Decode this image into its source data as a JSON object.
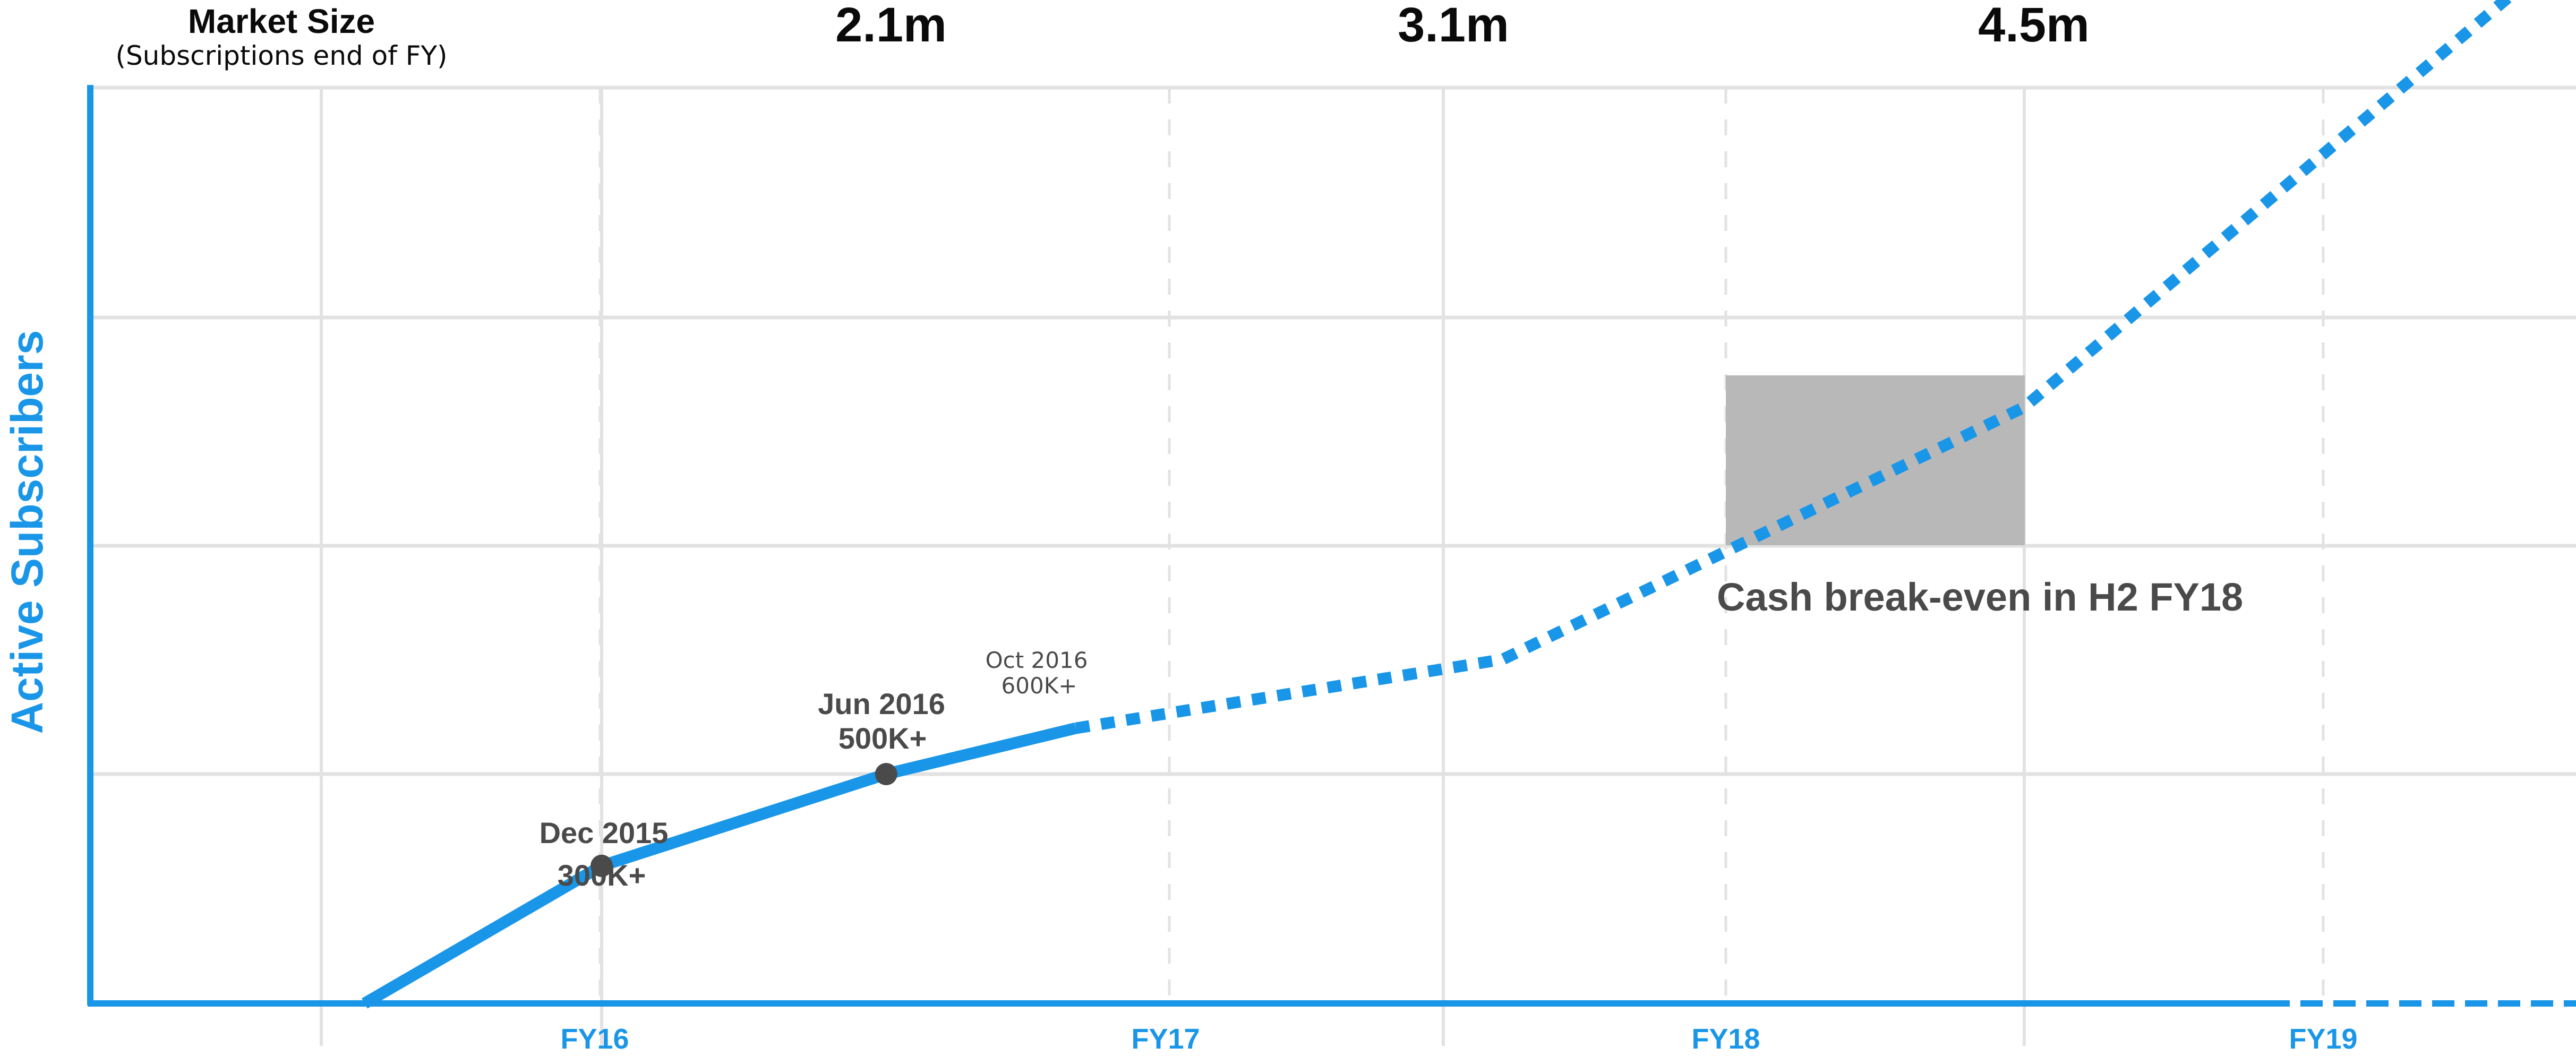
{
  "market_size": {
    "title": "Market Size",
    "subtitle": "(Subscriptions end of FY)",
    "values": [
      "2.1m",
      "3.1m",
      "4.5m"
    ]
  },
  "chart_data": {
    "type": "line",
    "title": "",
    "xlabel": "",
    "ylabel": "Active Subscribers",
    "x_ticks": [
      "FY16",
      "FY17",
      "FY18",
      "FY19"
    ],
    "grid": true,
    "series": [
      {
        "style": "solid",
        "points": [
          {
            "x": "Jul 2015",
            "y": 0
          },
          {
            "x": "Dec 2015",
            "y": 300000
          },
          {
            "x": "Jun 2016",
            "y": 500000
          },
          {
            "x": "Oct 2016",
            "y": 600000
          }
        ]
      },
      {
        "style": "dotted",
        "points": [
          {
            "x": "Oct 2016",
            "y": 600000
          },
          {
            "x": "Jul 2017",
            "y": 750000
          },
          {
            "x": "Jun 2018",
            "y": 1300000
          },
          {
            "x": "Jun 2019",
            "y": 2350000
          }
        ]
      }
    ],
    "annotations": [
      {
        "date": "Dec 2015",
        "value": "300K+",
        "x": "Dec 2015",
        "y": 300000
      },
      {
        "date": "Jun 2016",
        "value": "500K+",
        "x": "Jun 2016",
        "y": 500000
      },
      {
        "date": "Oct 2016",
        "value": "600K+",
        "x": "Oct 2016",
        "y": 600000
      }
    ],
    "highlight": {
      "label": "Cash break-even in H2 FY18",
      "x_range": [
        "Jan 2018",
        "Jun 2018"
      ]
    }
  },
  "colors": {
    "accent": "#1a96e8",
    "grid": "#e2e2e2",
    "text": "#4a4a4a",
    "box": "#b8b8b8",
    "marker": "#4a4a4a"
  }
}
